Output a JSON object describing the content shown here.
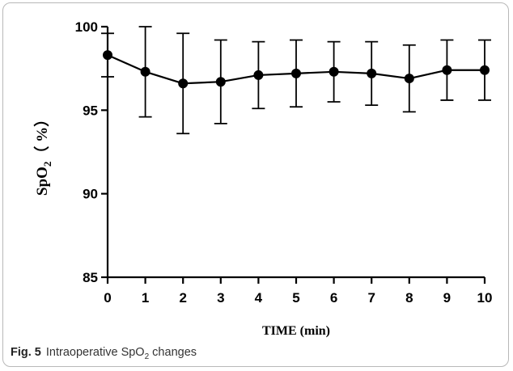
{
  "chart_data": {
    "type": "line",
    "title": "",
    "xlabel": "TIME (min)",
    "ylabel": {
      "base": "SpO",
      "sub": "2",
      "rest": "（ %）"
    },
    "x": [
      0,
      1,
      2,
      3,
      4,
      5,
      6,
      7,
      8,
      9,
      10
    ],
    "series": [
      {
        "values": [
          98.3,
          97.3,
          96.6,
          96.7,
          97.1,
          97.2,
          97.3,
          97.2,
          96.9,
          97.4,
          97.4
        ],
        "error": [
          1.3,
          2.7,
          3.0,
          2.5,
          2.0,
          2.0,
          1.8,
          1.9,
          2.0,
          1.8,
          1.8
        ]
      }
    ],
    "xlim": [
      0,
      10
    ],
    "ylim": [
      85,
      100
    ],
    "xticks": [
      "0",
      "1",
      "2",
      "3",
      "4",
      "5",
      "6",
      "7",
      "8",
      "9",
      "10"
    ],
    "yticks": [
      "85",
      "90",
      "95",
      "100"
    ],
    "grid": false,
    "legend": "none"
  },
  "caption": {
    "label": "Fig. 5",
    "text_before": "Intraoperative SpO",
    "sub": "2",
    "text_after": " changes"
  }
}
